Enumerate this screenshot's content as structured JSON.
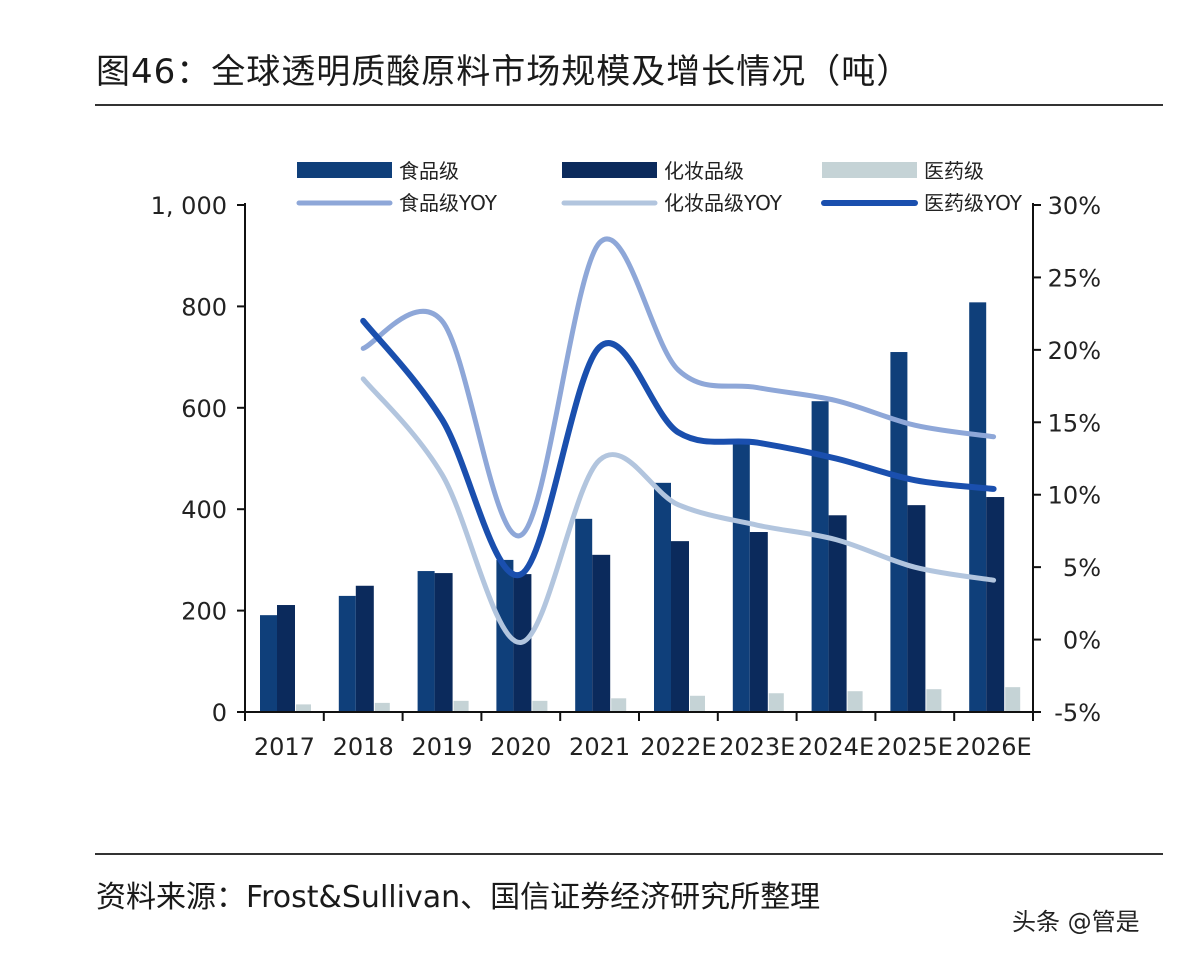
{
  "title": "图46：全球透明质酸原料市场规模及增长情况（吨）",
  "source": "资料来源：Frost&Sullivan、国信证券经济研究所整理",
  "watermark": "头条 @管是",
  "chart_data": {
    "type": "bar+line",
    "categories": [
      "2017",
      "2018",
      "2019",
      "2020",
      "2021",
      "2022E",
      "2023E",
      "2024E",
      "2025E",
      "2026E"
    ],
    "left_axis": {
      "ylim": [
        0,
        1000
      ],
      "ticks": [
        0,
        200,
        400,
        600,
        800,
        1000
      ],
      "tick_labels": [
        "0",
        "200",
        "400",
        "600",
        "800",
        "1, 000"
      ]
    },
    "right_axis": {
      "ylim": [
        -5,
        30
      ],
      "ticks": [
        -5,
        0,
        5,
        10,
        15,
        20,
        25,
        30
      ],
      "tick_labels": [
        "-5%",
        "0%",
        "5%",
        "10%",
        "15%",
        "20%",
        "25%",
        "30%"
      ]
    },
    "grid": false,
    "legend_placement": "top",
    "bar_series": [
      {
        "name": "食品级",
        "color": "#0f3f7a",
        "values": [
          191,
          229,
          278,
          300,
          381,
          452,
          530,
          613,
          710,
          808
        ]
      },
      {
        "name": "化妆品级",
        "color": "#0b2a5c",
        "values": [
          211,
          249,
          274,
          272,
          310,
          337,
          355,
          388,
          408,
          424
        ]
      },
      {
        "name": "医药级",
        "color": "#c5d3d6",
        "values": [
          15,
          18,
          22,
          22,
          27,
          32,
          37,
          41,
          45,
          49
        ]
      }
    ],
    "line_series": [
      {
        "name": "食品级YOY",
        "color": "#8ea7d8",
        "width": 5,
        "values": [
          null,
          20.1,
          22.0,
          7.2,
          27.4,
          18.6,
          17.4,
          16.5,
          14.8,
          14.0
        ]
      },
      {
        "name": "化妆品级YOY",
        "color": "#b2c5de",
        "width": 5,
        "values": [
          null,
          18.0,
          11.4,
          -0.2,
          12.4,
          9.3,
          7.9,
          6.9,
          5.0,
          4.1
        ]
      },
      {
        "name": "医药级YOY",
        "color": "#1a4fae",
        "width": 6,
        "values": [
          null,
          22.0,
          15.2,
          4.5,
          20.2,
          14.3,
          13.6,
          12.5,
          11.0,
          10.4
        ]
      }
    ]
  }
}
